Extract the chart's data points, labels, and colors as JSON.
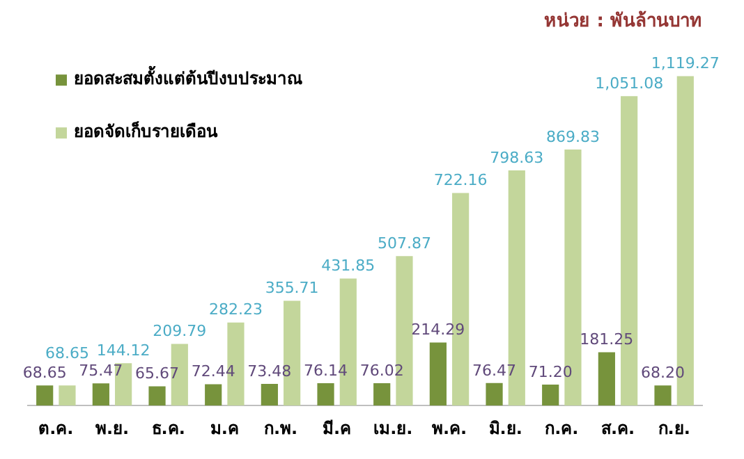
{
  "chart_data": {
    "type": "bar",
    "title": "หน่วย : พันล้านบาท",
    "categories": [
      "ต.ค.",
      "พ.ย.",
      "ธ.ค.",
      "ม.ค",
      "ก.พ.",
      "มี.ค",
      "เม.ย.",
      "พ.ค.",
      "มิ.ย.",
      "ก.ค.",
      "ส.ค.",
      "ก.ย."
    ],
    "series": [
      {
        "name": "ยอดสะสมตั้งแต่ต้นปีงบประมาณ",
        "color": "#77933c",
        "values": [
          68.65,
          75.47,
          65.67,
          72.44,
          73.48,
          76.14,
          76.02,
          214.29,
          76.47,
          71.2,
          181.25,
          68.2
        ],
        "value_labels": [
          "68.65",
          "75.47",
          "65.67",
          "72.44",
          "73.48",
          "76.14",
          "76.02",
          "214.29",
          "76.47",
          "71.20",
          "181.25",
          "68.20"
        ]
      },
      {
        "name": "ยอดจัดเก็บรายเดือน",
        "color": "#c3d69b",
        "values": [
          68.65,
          144.12,
          209.79,
          282.23,
          355.71,
          431.85,
          507.87,
          722.16,
          798.63,
          869.83,
          1051.08,
          1119.27
        ],
        "value_labels": [
          "68.65",
          "144.12",
          "209.79",
          "282.23",
          "355.71",
          "431.85",
          "507.87",
          "722.16",
          "798.63",
          "869.83",
          "1,051.08",
          "1,119.27"
        ]
      }
    ],
    "legend": "top left",
    "grid": false
  }
}
